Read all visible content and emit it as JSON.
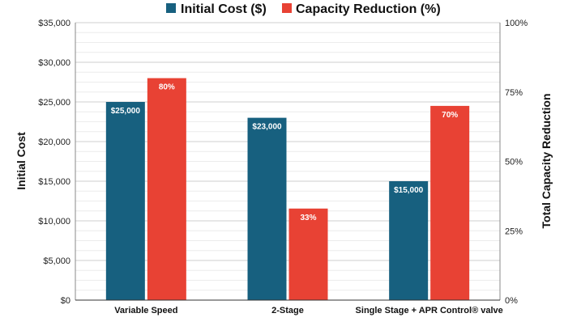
{
  "chart_data": {
    "type": "bar",
    "categories": [
      "Variable Speed",
      "2-Stage",
      "Single Stage + APR Control® valve"
    ],
    "series": [
      {
        "name": "Initial Cost ($)",
        "axis": "left",
        "color": "#17607F",
        "values": [
          25000,
          23000,
          15000
        ],
        "labels": [
          "$25,000",
          "$23,000",
          "$15,000"
        ]
      },
      {
        "name": "Capacity Reduction (%)",
        "axis": "right",
        "color": "#E84234",
        "values": [
          80,
          33,
          70
        ],
        "labels": [
          "80%",
          "33%",
          "70%"
        ]
      }
    ],
    "y_left": {
      "label": "Initial Cost",
      "range": [
        0,
        35000
      ],
      "ticks": [
        "$0",
        "$5,000",
        "$10,000",
        "$15,000",
        "$20,000",
        "$25,000",
        "$30,000",
        "$35,000"
      ]
    },
    "y_right": {
      "label": "Total Capacity Reduction",
      "range": [
        0,
        100
      ],
      "ticks": [
        "0%",
        "25%",
        "50%",
        "75%",
        "100%"
      ]
    },
    "grid": true,
    "legend_position": "top-center"
  }
}
